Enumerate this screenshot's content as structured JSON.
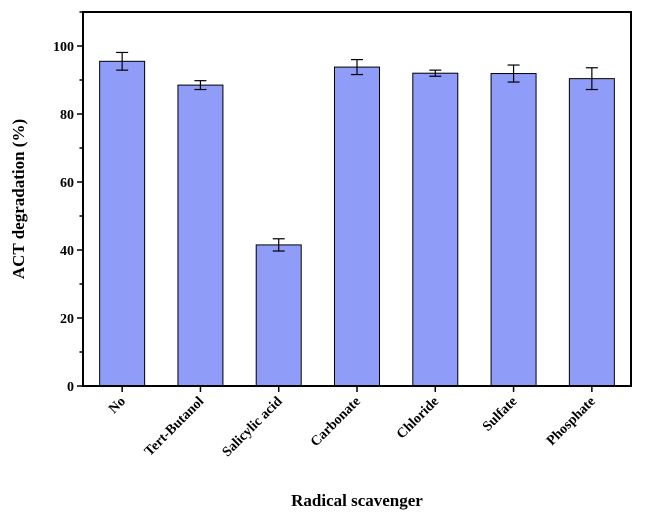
{
  "chart_data": {
    "type": "bar",
    "title": "",
    "xlabel": "Radical scavenger",
    "ylabel": "ACT degradation (%)",
    "ylim": [
      0,
      110
    ],
    "yticks": [
      0,
      20,
      40,
      60,
      80,
      100
    ],
    "grid": false,
    "legend": "none",
    "categories": [
      "No",
      "Tert-Butanol",
      "Salicylic acid",
      "Carbonate",
      "Chloride",
      "Sulfate",
      "Phosphate"
    ],
    "values": [
      95.5,
      88.5,
      41.5,
      93.8,
      92.0,
      91.9,
      90.4
    ],
    "errors": [
      2.6,
      1.3,
      1.8,
      2.2,
      0.9,
      2.5,
      3.2
    ],
    "colors": {
      "bar_fill": "#8f9cf8",
      "bar_stroke": "#000000",
      "axis": "#000000"
    }
  }
}
